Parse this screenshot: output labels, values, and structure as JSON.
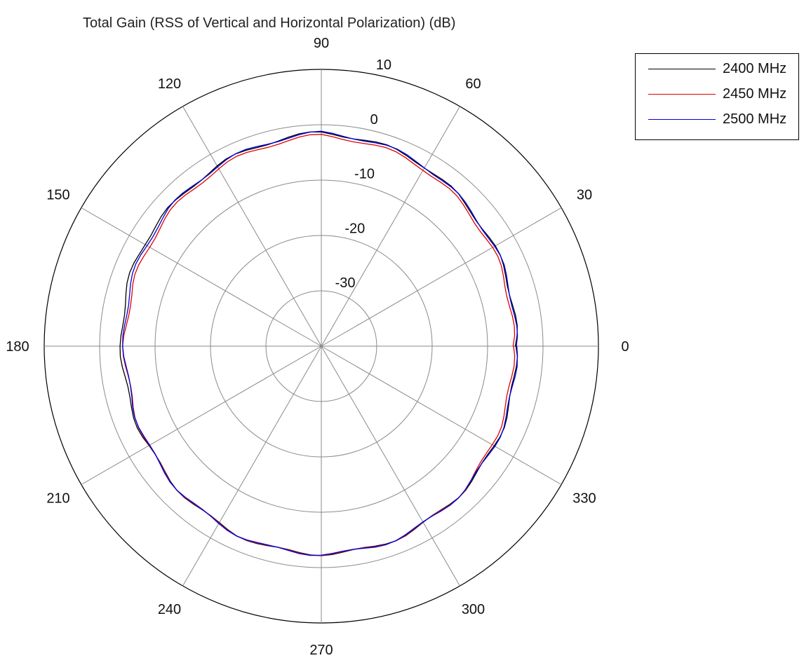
{
  "chart_data": {
    "type": "line",
    "coordinate_system": "polar",
    "title": "Total Gain (RSS of Vertical and Horizontal Polarization) (dB)",
    "angle_unit": "degrees",
    "angle_ticks": [
      0,
      30,
      60,
      90,
      120,
      150,
      180,
      210,
      240,
      270,
      300,
      330
    ],
    "radial_ticks": [
      -30,
      -20,
      -10,
      0,
      10
    ],
    "radial_range": [
      -40,
      10
    ],
    "grid": true,
    "legend_position": "top-right",
    "series": [
      {
        "name": "2400 MHz",
        "color": "#000000",
        "angles": [
          0,
          15,
          30,
          45,
          60,
          75,
          90,
          105,
          120,
          135,
          150,
          165,
          180,
          195,
          210,
          225,
          240,
          255,
          270,
          285,
          300,
          315,
          330,
          345,
          360
        ],
        "values": [
          -5,
          -4.5,
          -4,
          -3.5,
          -2.5,
          -2,
          -1.5,
          -2,
          -2.5,
          -3,
          -3,
          -3.5,
          -4,
          -4,
          -4,
          -3.5,
          -3,
          -2.5,
          -2.5,
          -2.5,
          -3,
          -3.5,
          -4,
          -4.5,
          -5
        ]
      },
      {
        "name": "2450 MHz",
        "color": "#e00000",
        "angles": [
          0,
          15,
          30,
          45,
          60,
          75,
          90,
          105,
          120,
          135,
          150,
          165,
          180,
          195,
          210,
          225,
          240,
          255,
          270,
          285,
          300,
          315,
          330,
          345,
          360
        ],
        "values": [
          -5.5,
          -5,
          -4.5,
          -4,
          -3,
          -2.5,
          -2,
          -2.5,
          -3,
          -3.5,
          -4,
          -4.5,
          -4.5,
          -4.5,
          -4,
          -3.5,
          -3,
          -2.5,
          -2.5,
          -2.5,
          -3,
          -3.5,
          -4.5,
          -5,
          -5.5
        ]
      },
      {
        "name": "2500 MHz",
        "color": "#0000e0",
        "angles": [
          0,
          15,
          30,
          45,
          60,
          75,
          90,
          105,
          120,
          135,
          150,
          165,
          180,
          195,
          210,
          225,
          240,
          255,
          270,
          285,
          300,
          315,
          330,
          345,
          360
        ],
        "values": [
          -5,
          -4.5,
          -4,
          -3.5,
          -2.5,
          -2,
          -1.5,
          -2,
          -2.5,
          -3,
          -3.5,
          -4,
          -4.5,
          -4.5,
          -4,
          -3.5,
          -3,
          -2.5,
          -2.5,
          -2.5,
          -3,
          -3.5,
          -4,
          -4.5,
          -5
        ]
      }
    ]
  }
}
